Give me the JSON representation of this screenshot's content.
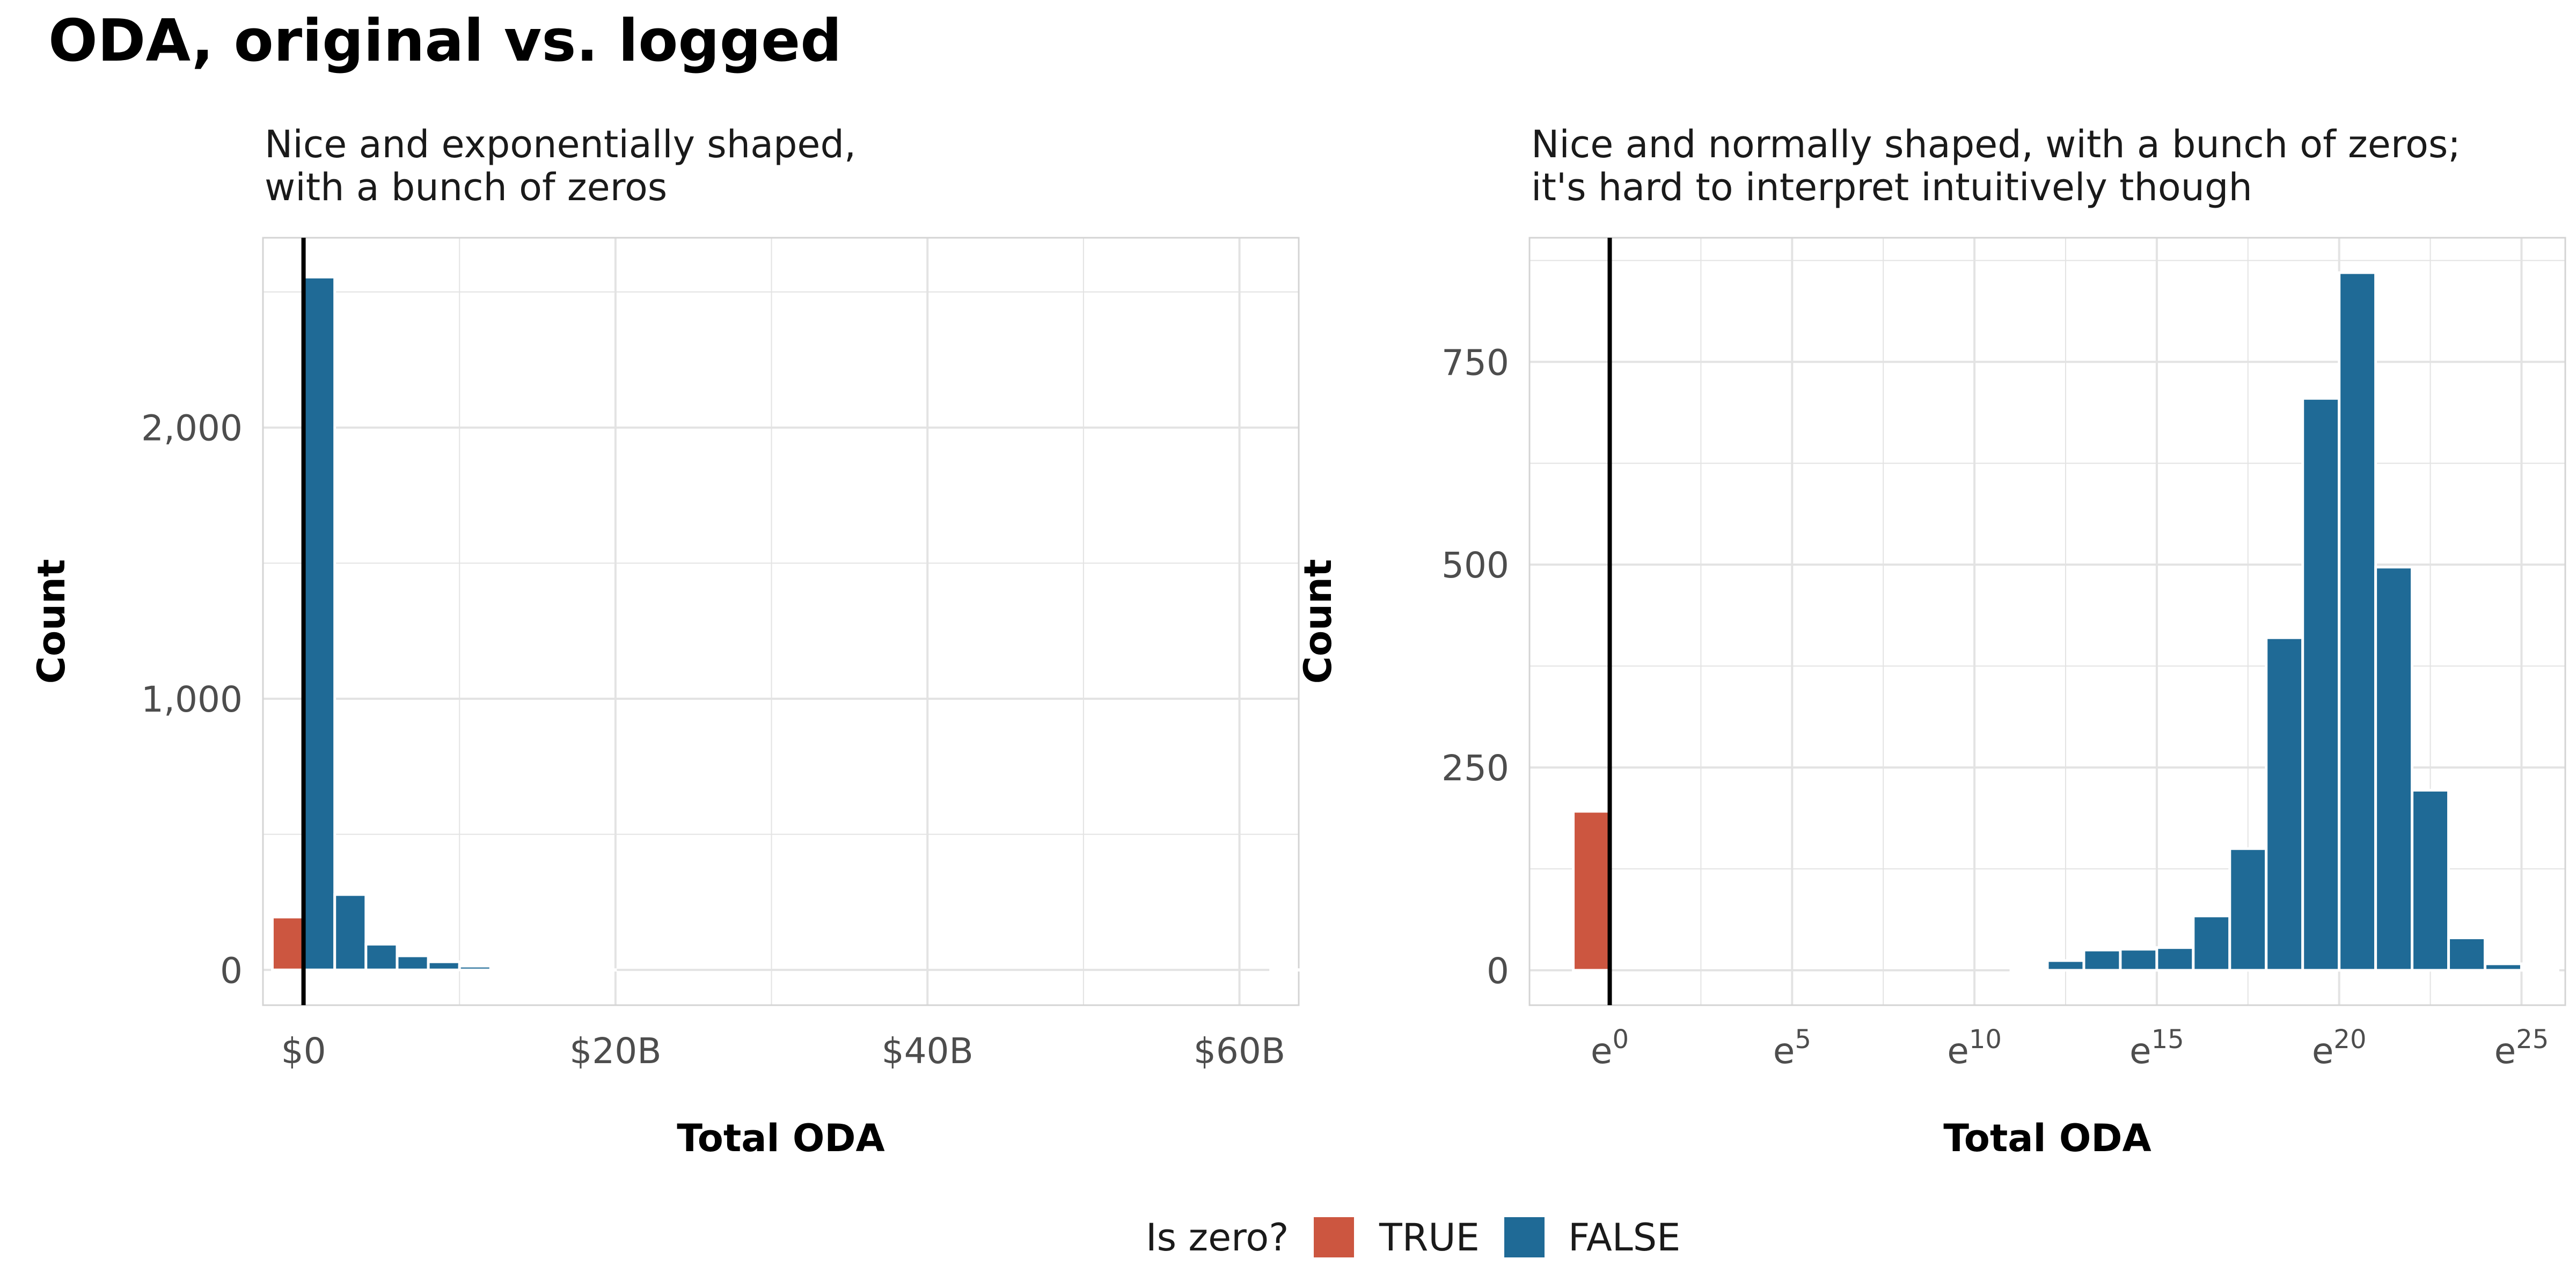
{
  "title": "ODA, original vs. logged",
  "legend": {
    "title": "Is zero?",
    "items": [
      {
        "label": "TRUE",
        "color": "#CC5640"
      },
      {
        "label": "FALSE",
        "color": "#1F6A96"
      }
    ]
  },
  "chart_data": [
    {
      "type": "bar",
      "subtitle": [
        "Nice and exponentially shaped,",
        "with a bunch of zeros"
      ],
      "xlabel": "Total ODA",
      "ylabel": "Count",
      "x_unit": "billions USD",
      "xlim": [
        -2.6,
        63.8
      ],
      "ylim": [
        -130,
        2700
      ],
      "x_ticks": [
        {
          "value": 0,
          "label": "$0"
        },
        {
          "value": 20,
          "label": "$20B"
        },
        {
          "value": 40,
          "label": "$40B"
        },
        {
          "value": 60,
          "label": "$60B"
        }
      ],
      "y_ticks": [
        {
          "value": 0,
          "label": "0"
        },
        {
          "value": 1000,
          "label": "1,000"
        },
        {
          "value": 2000,
          "label": "2,000"
        }
      ],
      "vline_x": 0,
      "grid": true,
      "series": [
        {
          "name": "TRUE",
          "bars": [
            {
              "x0": -2,
              "x1": 0,
              "count": 195
            }
          ]
        },
        {
          "name": "FALSE",
          "bars": [
            {
              "x0": 0,
              "x1": 2,
              "count": 2555
            },
            {
              "x0": 2,
              "x1": 4,
              "count": 278
            },
            {
              "x0": 4,
              "x1": 6,
              "count": 95
            },
            {
              "x0": 6,
              "x1": 8,
              "count": 52
            },
            {
              "x0": 8,
              "x1": 10,
              "count": 30
            },
            {
              "x0": 10,
              "x1": 12,
              "count": 14
            },
            {
              "x0": 12,
              "x1": 14,
              "count": 6
            },
            {
              "x0": 14,
              "x1": 16,
              "count": 3
            },
            {
              "x0": 16,
              "x1": 18,
              "count": 2
            },
            {
              "x0": 18,
              "x1": 20,
              "count": 1
            },
            {
              "x0": 62,
              "x1": 64,
              "count": 1
            }
          ]
        }
      ]
    },
    {
      "type": "bar",
      "subtitle": [
        "Nice and normally shaped, with a bunch of zeros;",
        "it's hard to interpret intuitively though"
      ],
      "xlabel": "Total ODA",
      "ylabel": "Count",
      "x_unit": "natural log",
      "xlim": [
        -2.2,
        26.2
      ],
      "ylim": [
        -43,
        903
      ],
      "x_ticks": [
        {
          "value": 0,
          "base": "e",
          "exp": "0"
        },
        {
          "value": 5,
          "base": "e",
          "exp": "5"
        },
        {
          "value": 10,
          "base": "e",
          "exp": "10"
        },
        {
          "value": 15,
          "base": "e",
          "exp": "15"
        },
        {
          "value": 20,
          "base": "e",
          "exp": "20"
        },
        {
          "value": 25,
          "base": "e",
          "exp": "25"
        }
      ],
      "y_ticks": [
        {
          "value": 0,
          "label": "0"
        },
        {
          "value": 250,
          "label": "250"
        },
        {
          "value": 500,
          "label": "500"
        },
        {
          "value": 750,
          "label": "750"
        }
      ],
      "vline_x": 0,
      "grid": true,
      "series": [
        {
          "name": "TRUE",
          "bars": [
            {
              "x0": -1,
              "x1": 0,
              "count": 196
            }
          ]
        },
        {
          "name": "FALSE",
          "bars": [
            {
              "x0": 11,
              "x1": 12,
              "count": 3
            },
            {
              "x0": 12,
              "x1": 13,
              "count": 12
            },
            {
              "x0": 13,
              "x1": 14,
              "count": 25
            },
            {
              "x0": 14,
              "x1": 15,
              "count": 26
            },
            {
              "x0": 15,
              "x1": 16,
              "count": 28
            },
            {
              "x0": 16,
              "x1": 17,
              "count": 67
            },
            {
              "x0": 17,
              "x1": 18,
              "count": 150
            },
            {
              "x0": 18,
              "x1": 19,
              "count": 410
            },
            {
              "x0": 19,
              "x1": 20,
              "count": 705
            },
            {
              "x0": 20,
              "x1": 21,
              "count": 860
            },
            {
              "x0": 21,
              "x1": 22,
              "count": 497
            },
            {
              "x0": 22,
              "x1": 23,
              "count": 222
            },
            {
              "x0": 23,
              "x1": 24,
              "count": 40
            },
            {
              "x0": 24,
              "x1": 25,
              "count": 8
            },
            {
              "x0": 25,
              "x1": 26,
              "count": 1
            }
          ]
        }
      ]
    }
  ]
}
